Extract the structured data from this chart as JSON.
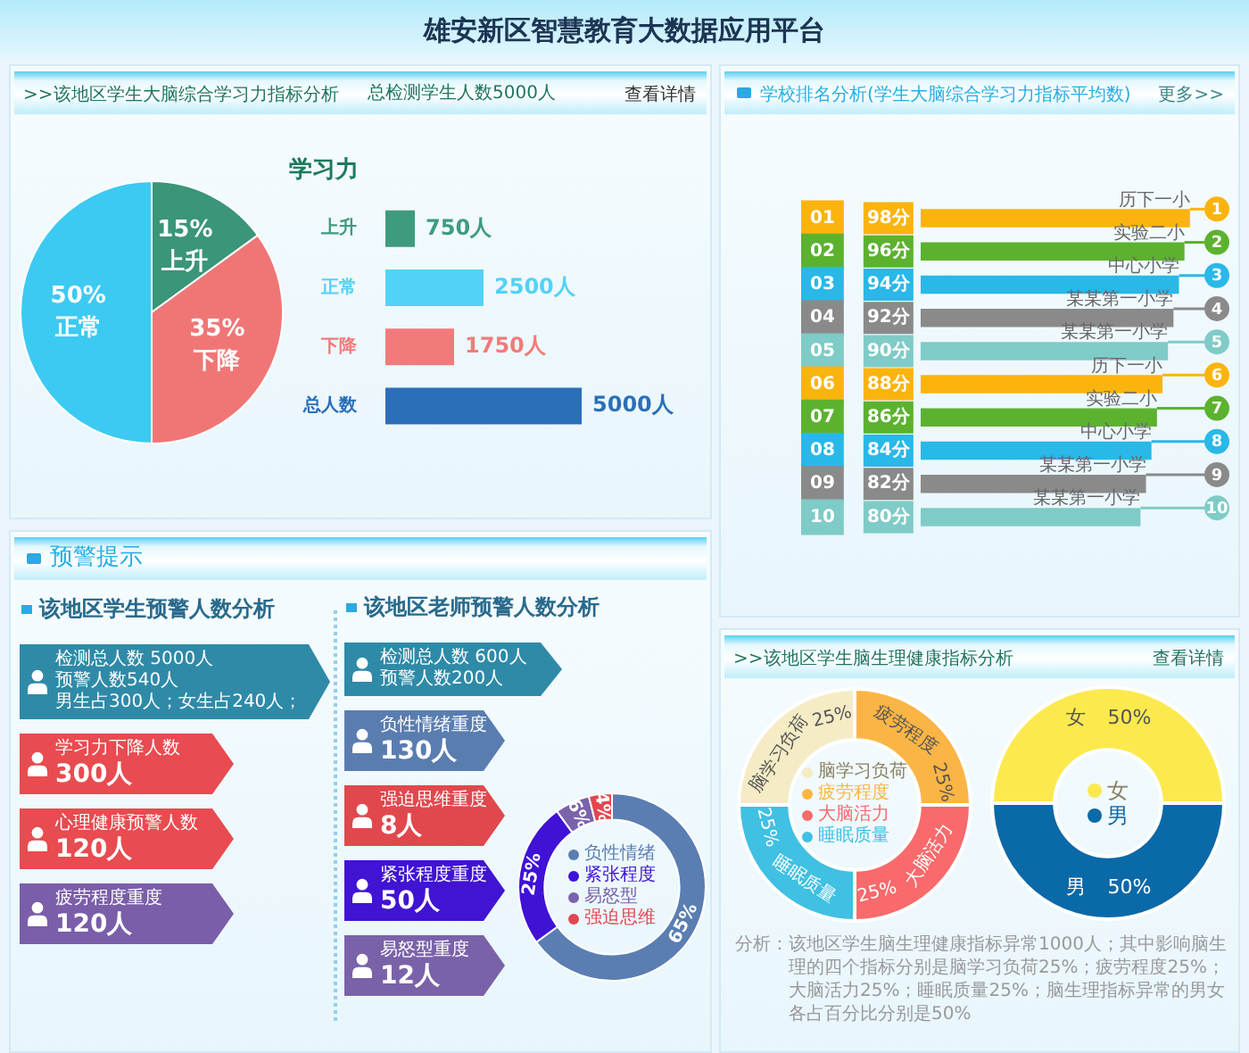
{
  "chart_data": [
    {
      "type": "other",
      "title": "雄安新区智慧教育大数据应用平台"
    },
    {
      "type": "pie",
      "title": ">>该地区学生大脑综合学习力指标分析",
      "annotations": [
        "查看详情"
      ],
      "categories": [
        "上升",
        "下降",
        "正常"
      ],
      "values": [
        15,
        35,
        50
      ],
      "colors": [
        "#3a9579",
        "#f07676",
        "#3ccaf2"
      ],
      "value_labels": [
        "15%",
        "35%",
        "50%"
      ]
    },
    {
      "type": "bar",
      "orientation": "horizontal",
      "title": "学习力",
      "subtitle": "总检测学生人数5000人",
      "categories": [
        "上升",
        "正常",
        "下降",
        "总人数"
      ],
      "values": [
        750,
        2500,
        1750,
        5000
      ],
      "colors": [
        "#3f9b7e",
        "#52d2f6",
        "#f17b7b",
        "#2b6fb8"
      ],
      "value_labels": [
        "750人",
        "2500人",
        "1750人",
        "5000人"
      ],
      "tick_labels": "y"
    },
    {
      "type": "bar",
      "orientation": "horizontal",
      "title": "学校排名分析(学生大脑综合学习力指标平均数)",
      "categories": [
        "01",
        "02",
        "03",
        "04",
        "05",
        "06",
        "07",
        "08",
        "09",
        "10"
      ],
      "values": [
        98,
        96,
        94,
        92,
        90,
        88,
        86,
        84,
        82,
        80
      ],
      "colors": [
        "#fbb40e",
        "#5cb22e",
        "#29b8e8",
        "#8a8a8a",
        "#7fcbc7",
        "#fbb40e",
        "#5cb22e",
        "#29b8e8",
        "#8a8a8a",
        "#7fcbc7"
      ],
      "value_labels": [
        "98分",
        "96分",
        "94分",
        "92分",
        "90分",
        "88分",
        "86分",
        "84分",
        "82分",
        "80分"
      ],
      "tick_labels": "y",
      "annotations": [
        "更多>>",
        "1",
        "2",
        "3",
        "4",
        "5",
        "6",
        "7",
        "8",
        "9",
        "10",
        {
          "text": "历下一小",
          "x": 98,
          "y": "01"
        },
        {
          "text": "实验二小",
          "x": 96,
          "y": "02"
        },
        {
          "text": "中心小学",
          "x": 94,
          "y": "03"
        },
        {
          "text": "某某第一小学",
          "x": 92,
          "y": "04"
        },
        {
          "text": "某某第一小学",
          "x": 90,
          "y": "05"
        },
        {
          "text": "历下一小",
          "x": 88,
          "y": "06"
        },
        {
          "text": "实验二小",
          "x": 86,
          "y": "07"
        },
        {
          "text": "中心小学",
          "x": 84,
          "y": "08"
        },
        {
          "text": "某某第一小学",
          "x": 82,
          "y": "09"
        },
        {
          "text": "某某第一小学",
          "x": 80,
          "y": "10"
        }
      ]
    },
    {
      "type": "other",
      "title": "预警提示",
      "subtitle": "该地区学生预警人数分析",
      "annotations": [
        "检测总人数 5000人",
        "预警人数540人",
        "男生占300人；女生占240人；",
        "学习力下降人数",
        "300人",
        "心理健康预警人数",
        "120人",
        "疲劳程度重度",
        "120人"
      ],
      "colors": [
        "#2f8aa8",
        "#e84b50",
        "#e84b50",
        "#7a5ea9"
      ]
    },
    {
      "type": "other",
      "title": "该地区老师预警人数分析",
      "annotations": [
        "检测总人数 600人",
        "预警人数200人",
        "负性情绪重度",
        "130人",
        "强迫思维重度",
        "8人",
        "紧张程度重度",
        "50人",
        "易怒型重度",
        "12人"
      ],
      "colors": [
        "#2f8aa8",
        "#5a7db0",
        "#e0484e",
        "#4113d3",
        "#7a62a9"
      ]
    },
    {
      "type": "donut",
      "categories": [
        "负性情绪",
        "紧张程度",
        "易怒型",
        "强迫思维"
      ],
      "values": [
        65,
        25,
        6,
        4
      ],
      "colors": [
        "#5a7eb2",
        "#3f12d6",
        "#7a63aa",
        "#e2474f"
      ],
      "value_labels": [
        "65%",
        "25%",
        "6%",
        "4%"
      ],
      "legend": "center"
    },
    {
      "type": "donut",
      "title": ">>该地区学生脑生理健康指标分析",
      "annotations": [
        "查看详情",
        "分析：该地区学生脑生理健康指标异常1000人；其中影响脑生理的四个指标分别是脑学习负荷25%；疲劳程度25%；大脑活力25%；睡眠质量25%；脑生理指标异常的男女各占百分比分别是50%"
      ],
      "categories": [
        "脑学习负荷",
        "疲劳程度",
        "大脑活力",
        "睡眠质量"
      ],
      "values": [
        25,
        25,
        25,
        25
      ],
      "colors": [
        "#f5ecc6",
        "#fbb545",
        "#f86a6c",
        "#40c0e2"
      ],
      "value_labels": [
        "25%",
        "25%",
        "25%",
        "25%"
      ],
      "legend": "center"
    },
    {
      "type": "donut",
      "categories": [
        "女",
        "男"
      ],
      "values": [
        50,
        50
      ],
      "colors": [
        "#fbe94e",
        "#0a69a7"
      ],
      "value_labels": [
        "50%",
        "50%"
      ],
      "legend": "center"
    }
  ]
}
